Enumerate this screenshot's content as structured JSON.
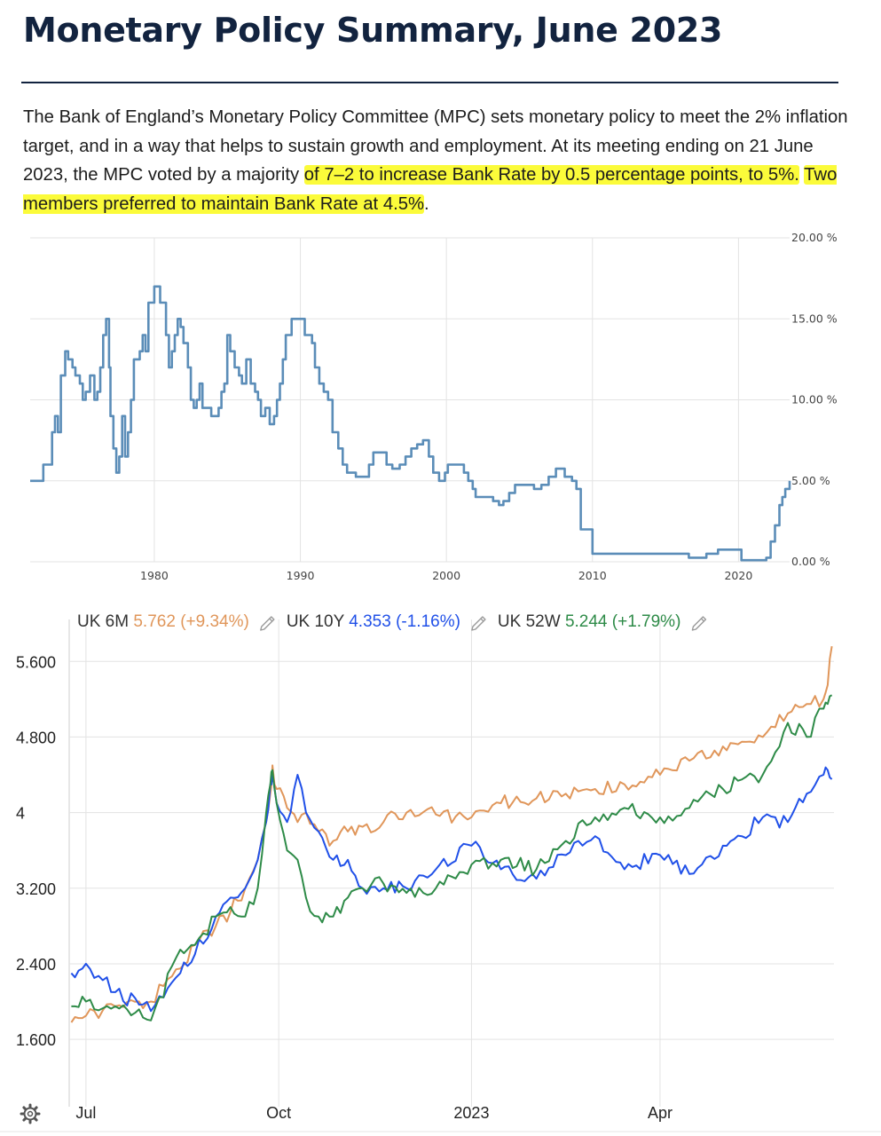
{
  "header": {
    "title": "Monetary Policy Summary, June 2023",
    "paragraph_plain": "The Bank of England’s Monetary Policy Committee (MPC) sets monetary policy to meet the 2% inflation target, and in a way that helps to sustain growth and employment. At its meeting ending on 21 June 2023, the MPC voted by a majority ",
    "paragraph_highlight_1": "of 7–2 to increase Bank Rate by 0.5 percentage points, to 5%.",
    "paragraph_space": " ",
    "paragraph_highlight_2": "Two members preferred to maintain Bank Rate at 4.5%",
    "paragraph_end": ".",
    "highlight_color": "#fbfb3a"
  },
  "chart_data": [
    {
      "type": "line",
      "title": "",
      "xlabel": "",
      "ylabel": "",
      "y_axis_side": "right",
      "xlim": [
        1971.5,
        2023.5
      ],
      "ylim": [
        0,
        20
      ],
      "x_ticks": [
        1980,
        1990,
        2000,
        2010,
        2020
      ],
      "x_tick_labels": [
        "1980",
        "1990",
        "2000",
        "2010",
        "2020"
      ],
      "y_ticks": [
        0,
        5,
        10,
        15,
        20
      ],
      "y_tick_labels": [
        "0.00 %",
        "5.00 %",
        "10.00 %",
        "15.00 %",
        "20.00 %"
      ],
      "grid": true,
      "color": "#5b8db8",
      "series": [
        {
          "x": [
            1971.5,
            1972.2,
            1972.4,
            1972.8,
            1973.0,
            1973.2,
            1973.4,
            1973.6,
            1973.9,
            1974.1,
            1974.4,
            1974.6,
            1974.9,
            1975.1,
            1975.3,
            1975.6,
            1975.9,
            1976.1,
            1976.3,
            1976.5,
            1976.7,
            1976.9,
            1977.0,
            1977.2,
            1977.4,
            1977.6,
            1977.8,
            1978.0,
            1978.2,
            1978.4,
            1978.6,
            1978.8,
            1979.0,
            1979.2,
            1979.4,
            1979.6,
            1980.0,
            1980.4,
            1980.6,
            1980.8,
            1981.0,
            1981.2,
            1981.4,
            1981.6,
            1981.8,
            1982.0,
            1982.3,
            1982.5,
            1982.7,
            1982.9,
            1983.1,
            1983.3,
            1983.6,
            1983.9,
            1984.2,
            1984.4,
            1984.6,
            1984.8,
            1985.0,
            1985.2,
            1985.5,
            1985.8,
            1986.0,
            1986.3,
            1986.6,
            1986.9,
            1987.1,
            1987.3,
            1987.6,
            1987.9,
            1988.2,
            1988.4,
            1988.6,
            1988.8,
            1989.0,
            1989.4,
            1989.8,
            1990.3,
            1990.8,
            1991.0,
            1991.3,
            1991.6,
            1991.9,
            1992.2,
            1992.6,
            1992.9,
            1993.2,
            1993.8,
            1994.3,
            1994.7,
            1995.0,
            1995.4,
            1995.9,
            1996.3,
            1996.8,
            1997.2,
            1997.6,
            1998.0,
            1998.4,
            1998.8,
            1999.1,
            1999.5,
            1999.9,
            2000.1,
            2000.8,
            2001.2,
            2001.5,
            2001.8,
            2002.0,
            2002.7,
            2003.2,
            2003.6,
            2003.9,
            2004.3,
            2004.7,
            2005.5,
            2006.0,
            2006.5,
            2007.0,
            2007.5,
            2008.1,
            2008.6,
            2008.9,
            2009.2,
            2010.0,
            2014.0,
            2016.6,
            2017.8,
            2018.6,
            2019.5,
            2020.2,
            2020.4,
            2021.9,
            2022.2,
            2022.5,
            2022.8,
            2023.0,
            2023.2,
            2023.5
          ],
          "values": [
            5.0,
            5.0,
            6.0,
            6.0,
            8.0,
            9.0,
            8.0,
            11.5,
            13.0,
            12.5,
            12.0,
            11.5,
            11.0,
            10.0,
            10.5,
            11.5,
            10.0,
            10.5,
            12.0,
            14.0,
            15.0,
            12.0,
            9.0,
            7.0,
            5.5,
            6.5,
            9.0,
            6.5,
            8.0,
            10.0,
            12.5,
            12.5,
            13.0,
            14.0,
            13.0,
            16.0,
            17.0,
            16.0,
            16.0,
            14.0,
            12.0,
            13.0,
            14.0,
            15.0,
            14.5,
            13.5,
            12.0,
            10.0,
            9.5,
            10.0,
            11.0,
            9.5,
            9.5,
            9.0,
            9.0,
            9.5,
            10.5,
            11.0,
            14.0,
            13.0,
            12.0,
            11.5,
            11.0,
            12.5,
            11.0,
            10.5,
            10.0,
            9.0,
            9.5,
            8.5,
            9.0,
            10.0,
            11.0,
            12.5,
            14.0,
            15.0,
            15.0,
            14.0,
            13.5,
            12.0,
            11.0,
            10.5,
            10.0,
            8.0,
            7.0,
            6.0,
            5.5,
            5.25,
            5.25,
            6.0,
            6.75,
            6.75,
            6.0,
            5.75,
            6.0,
            6.5,
            7.0,
            7.25,
            7.5,
            6.5,
            5.5,
            5.0,
            5.5,
            6.0,
            6.0,
            5.5,
            5.0,
            4.5,
            4.0,
            4.0,
            3.75,
            3.5,
            3.75,
            4.25,
            4.75,
            4.75,
            4.5,
            4.75,
            5.25,
            5.75,
            5.25,
            5.0,
            4.5,
            2.0,
            0.5,
            0.5,
            0.25,
            0.5,
            0.75,
            0.75,
            0.1,
            0.1,
            0.25,
            1.25,
            2.25,
            3.5,
            4.0,
            4.5,
            5.0
          ]
        }
      ]
    },
    {
      "type": "line",
      "title": "",
      "xlabel": "",
      "ylabel": "",
      "y_axis_side": "left",
      "x_is_date": true,
      "xlim": [
        "2022-06-23",
        "2023-06-23"
      ],
      "ylim": [
        1.0,
        5.95
      ],
      "x_ticks": [
        "2022-07-01",
        "2022-10-01",
        "2023-01-01",
        "2023-04-01"
      ],
      "x_tick_labels": [
        "Jul",
        "Oct",
        "2023",
        "Apr"
      ],
      "y_ticks": [
        1.6,
        2.4,
        3.2,
        4.0,
        4.8,
        5.6
      ],
      "y_tick_labels": [
        "1.600",
        "2.400",
        "3.200",
        "4",
        "4.800",
        "5.600"
      ],
      "grid": true,
      "legend_position": "top-left",
      "gear_icon": "gear-icon",
      "legend": [
        {
          "name": "UK 6M",
          "value": "5.762",
          "change": "(+9.34%)",
          "color": "#e0965a",
          "edit_icon": "pencil-icon"
        },
        {
          "name": "UK 10Y",
          "value": "4.353",
          "change": "(-1.16%)",
          "color": "#2050e8",
          "edit_icon": "pencil-icon"
        },
        {
          "name": "UK 52W",
          "value": "5.244",
          "change": "(+1.79%)",
          "color": "#2e8b48",
          "edit_icon": "pencil-icon"
        }
      ],
      "series": [
        {
          "name": "UK 6M",
          "color": "#e0965a",
          "x": [
            "2022-06-24",
            "2022-07-01",
            "2022-07-15",
            "2022-08-01",
            "2022-08-15",
            "2022-08-22",
            "2022-09-01",
            "2022-09-08",
            "2022-09-15",
            "2022-09-21",
            "2022-09-25",
            "2022-09-27",
            "2022-09-28",
            "2022-09-30",
            "2022-10-05",
            "2022-10-10",
            "2022-10-14",
            "2022-10-20",
            "2022-10-27",
            "2022-11-03",
            "2022-11-10",
            "2022-11-20",
            "2022-12-01",
            "2022-12-15",
            "2023-01-01",
            "2023-01-15",
            "2023-02-01",
            "2023-02-15",
            "2023-03-01",
            "2023-03-15",
            "2023-04-01",
            "2023-04-15",
            "2023-05-01",
            "2023-05-10",
            "2023-05-20",
            "2023-06-01",
            "2023-06-10",
            "2023-06-18",
            "2023-06-20",
            "2023-06-22"
          ],
          "values": [
            1.78,
            1.85,
            1.95,
            2.0,
            2.35,
            2.6,
            2.8,
            2.95,
            3.2,
            3.5,
            3.9,
            4.2,
            4.5,
            4.25,
            4.05,
            3.9,
            4.0,
            3.8,
            3.7,
            3.8,
            3.85,
            3.9,
            4.0,
            3.98,
            3.95,
            4.1,
            4.15,
            4.2,
            4.25,
            4.3,
            4.4,
            4.55,
            4.7,
            4.75,
            4.8,
            5.05,
            5.15,
            5.2,
            5.35,
            5.76
          ]
        },
        {
          "name": "UK 10Y",
          "color": "#2050e8",
          "x": [
            "2022-06-24",
            "2022-07-01",
            "2022-07-15",
            "2022-08-01",
            "2022-08-15",
            "2022-08-22",
            "2022-09-01",
            "2022-09-08",
            "2022-09-15",
            "2022-09-21",
            "2022-09-25",
            "2022-09-27",
            "2022-09-28",
            "2022-09-30",
            "2022-10-05",
            "2022-10-10",
            "2022-10-14",
            "2022-10-20",
            "2022-10-27",
            "2022-11-03",
            "2022-11-10",
            "2022-11-20",
            "2022-12-01",
            "2022-12-15",
            "2023-01-01",
            "2023-01-15",
            "2023-02-01",
            "2023-02-15",
            "2023-03-01",
            "2023-03-15",
            "2023-04-01",
            "2023-04-15",
            "2023-05-01",
            "2023-05-10",
            "2023-05-20",
            "2023-06-01",
            "2023-06-10",
            "2023-06-18",
            "2023-06-20",
            "2023-06-22"
          ],
          "values": [
            2.3,
            2.4,
            2.1,
            1.9,
            2.3,
            2.5,
            2.9,
            3.1,
            3.2,
            3.5,
            3.9,
            4.3,
            4.4,
            4.1,
            3.9,
            4.4,
            4.0,
            3.8,
            3.5,
            3.5,
            3.2,
            3.2,
            3.2,
            3.4,
            3.65,
            3.4,
            3.3,
            3.55,
            3.75,
            3.4,
            3.55,
            3.35,
            3.65,
            3.75,
            3.95,
            3.9,
            4.2,
            4.4,
            4.45,
            4.353
          ]
        },
        {
          "name": "UK 52W",
          "color": "#2e8b48",
          "x": [
            "2022-06-24",
            "2022-07-01",
            "2022-07-15",
            "2022-08-01",
            "2022-08-15",
            "2022-08-22",
            "2022-09-01",
            "2022-09-08",
            "2022-09-15",
            "2022-09-21",
            "2022-09-25",
            "2022-09-27",
            "2022-09-28",
            "2022-09-30",
            "2022-10-05",
            "2022-10-10",
            "2022-10-14",
            "2022-10-20",
            "2022-10-27",
            "2022-11-03",
            "2022-11-10",
            "2022-11-20",
            "2022-12-01",
            "2022-12-15",
            "2023-01-01",
            "2023-01-15",
            "2023-02-01",
            "2023-02-15",
            "2023-03-01",
            "2023-03-15",
            "2023-04-01",
            "2023-04-15",
            "2023-05-01",
            "2023-05-10",
            "2023-05-20",
            "2023-06-01",
            "2023-06-10",
            "2023-06-18",
            "2023-06-20",
            "2023-06-22"
          ],
          "values": [
            1.95,
            2.0,
            1.95,
            1.8,
            2.55,
            2.6,
            2.9,
            3.0,
            2.9,
            3.2,
            4.0,
            4.3,
            4.45,
            4.1,
            3.6,
            3.5,
            3.1,
            2.9,
            2.9,
            3.1,
            3.2,
            3.25,
            3.15,
            3.2,
            3.45,
            3.5,
            3.4,
            3.7,
            3.95,
            4.05,
            3.95,
            4.05,
            4.25,
            4.35,
            4.4,
            4.95,
            4.8,
            5.1,
            5.15,
            5.244
          ]
        }
      ]
    }
  ]
}
